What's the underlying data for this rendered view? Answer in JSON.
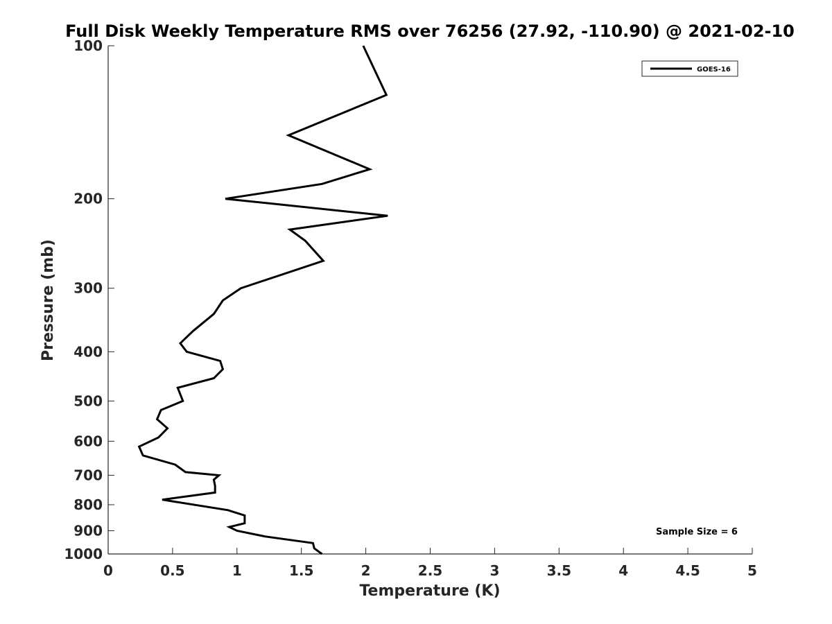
{
  "chart_data": {
    "type": "line",
    "title": "Full Disk Weekly Temperature RMS over 76256 (27.92, -110.90) @ 2021-02-10",
    "xlabel": "Temperature (K)",
    "ylabel": "Pressure (mb)",
    "xlim": [
      0,
      5
    ],
    "ylim": [
      100,
      1000
    ],
    "y_scale": "log",
    "y_reversed": true,
    "grid": false,
    "legend_position": "top-right",
    "x_ticks": [
      "0",
      "0.5",
      "1",
      "1.5",
      "2",
      "2.5",
      "3",
      "3.5",
      "4",
      "4.5",
      "5"
    ],
    "y_ticks": [
      "100",
      "200",
      "300",
      "400",
      "500",
      "600",
      "700",
      "800",
      "900",
      "1000"
    ],
    "series": [
      {
        "name": "GOES-16",
        "color": "#000000",
        "points": [
          [
            1.98,
            100
          ],
          [
            2.16,
            125
          ],
          [
            1.4,
            150
          ],
          [
            2.03,
            175
          ],
          [
            1.66,
            187
          ],
          [
            0.91,
            200
          ],
          [
            2.17,
            216
          ],
          [
            1.41,
            230
          ],
          [
            1.53,
            242
          ],
          [
            1.67,
            265
          ],
          [
            1.03,
            300
          ],
          [
            0.89,
            317
          ],
          [
            0.82,
            337
          ],
          [
            0.66,
            364
          ],
          [
            0.56,
            385
          ],
          [
            0.61,
            400
          ],
          [
            0.87,
            417
          ],
          [
            0.89,
            433
          ],
          [
            0.82,
            451
          ],
          [
            0.54,
            471
          ],
          [
            0.58,
            500
          ],
          [
            0.41,
            521
          ],
          [
            0.38,
            543
          ],
          [
            0.46,
            566
          ],
          [
            0.39,
            590
          ],
          [
            0.24,
            615
          ],
          [
            0.27,
            640
          ],
          [
            0.52,
            667
          ],
          [
            0.6,
            690
          ],
          [
            0.86,
            700
          ],
          [
            0.82,
            714
          ],
          [
            0.83,
            735
          ],
          [
            0.83,
            757
          ],
          [
            0.42,
            782
          ],
          [
            0.93,
            820
          ],
          [
            1.06,
            840
          ],
          [
            1.06,
            870
          ],
          [
            0.94,
            885
          ],
          [
            1.0,
            900
          ],
          [
            1.22,
            924
          ],
          [
            1.59,
            952
          ],
          [
            1.6,
            975
          ],
          [
            1.66,
            1000
          ]
        ]
      }
    ],
    "annotations": [
      "Sample Size = 6"
    ]
  }
}
